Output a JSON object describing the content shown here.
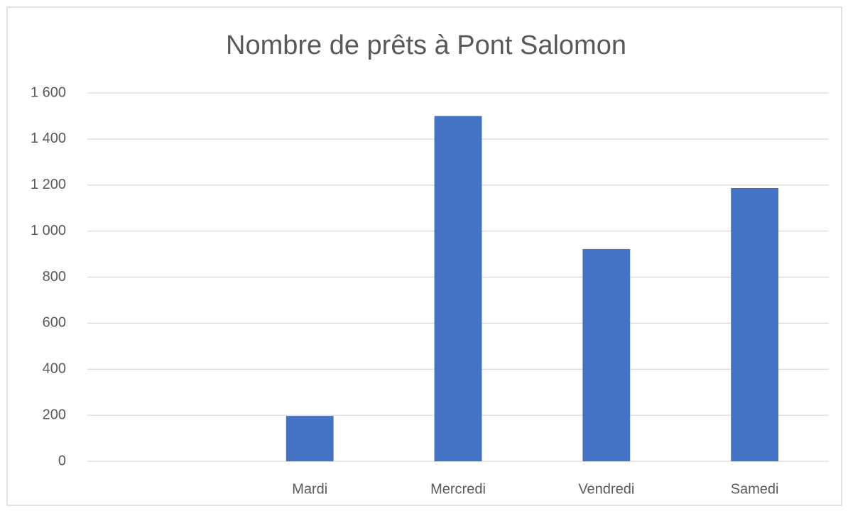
{
  "chart_data": {
    "type": "bar",
    "title": "Nombre de prêts à Pont Salomon",
    "categories": [
      null,
      "Mardi",
      "Mercredi",
      "Vendredi",
      "Samedi"
    ],
    "values": [
      null,
      197,
      1500,
      922,
      1187
    ],
    "color": "#4472c4",
    "ylim": [
      0,
      1600
    ],
    "yticks": [
      0,
      200,
      400,
      600,
      800,
      {
        "value": 1000,
        "label": "1 000"
      },
      {
        "value": 1200,
        "label": "1 200"
      },
      {
        "value": 1400,
        "label": "1 400"
      },
      {
        "value": 1600,
        "label": "1 600"
      }
    ],
    "grid": true
  }
}
